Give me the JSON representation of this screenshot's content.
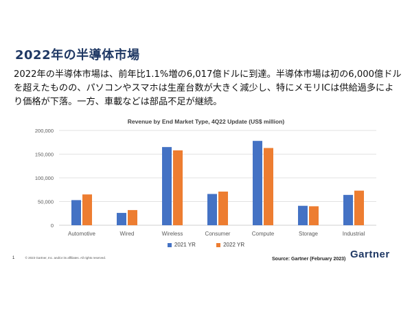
{
  "slide": {
    "title": "2022年の半導体市場",
    "description": "2022年の半導体市場は、前年比1.1%増の6,017億ドルに到達。半導体市場は初の6,000億ドルを超えたものの、パソコンやスマホは生産台数が大きく減少し、特にメモリICは供給過多により価格が下落。一方、車載などは部品不足が継続。",
    "page_number": "1",
    "copyright": "© 2023 Gartner, Inc. and/or its affiliates. All rights reserved.",
    "source": "Source: Gartner (February 2023)",
    "logo_text": "Gartner"
  },
  "chart_data": {
    "type": "bar",
    "title": "Revenue by End Market Type, 4Q22 Update (US$ million)",
    "xlabel": "",
    "ylabel": "",
    "ylim": [
      0,
      200000
    ],
    "yticks": [
      0,
      50000,
      100000,
      150000,
      200000
    ],
    "ytick_labels": [
      "0",
      "50,000",
      "100,000",
      "150,000",
      "200,000"
    ],
    "categories": [
      "Automotive",
      "Wired",
      "Wireless",
      "Consumer",
      "Compute",
      "Storage",
      "Industrial"
    ],
    "series": [
      {
        "name": "2021 YR",
        "color": "#4472c4",
        "values": [
          53000,
          26000,
          165000,
          66000,
          178000,
          41000,
          64000
        ]
      },
      {
        "name": "2022 YR",
        "color": "#ed7d31",
        "values": [
          65000,
          32000,
          158000,
          71000,
          163000,
          40000,
          73000
        ]
      }
    ],
    "grid": true,
    "legend_position": "bottom"
  }
}
